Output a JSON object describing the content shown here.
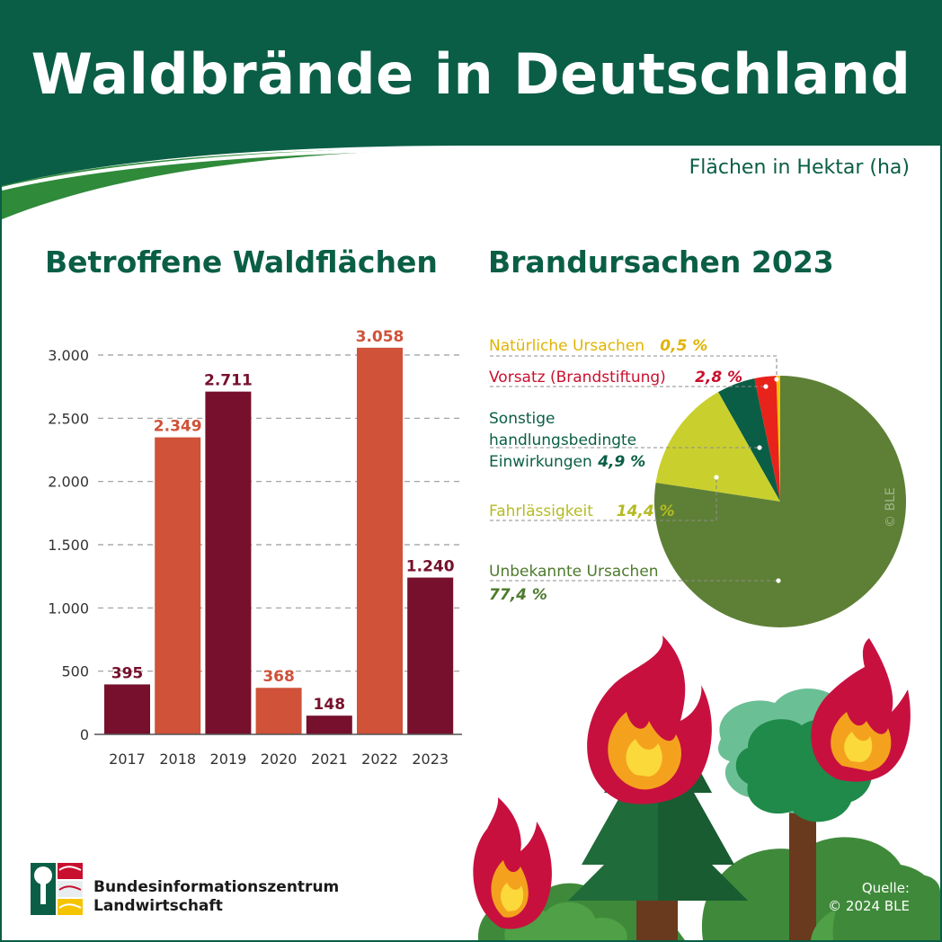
{
  "header": {
    "title": "Waldbrände in Deutschland",
    "unit_note": "Flächen in Hektar (ha)"
  },
  "colors": {
    "brand_green": "#0a5e45",
    "bar_dark": "#76102d",
    "bar_orange": "#cf5239",
    "pie_unknown": "#5e8036",
    "pie_negligence": "#c9d02e",
    "pie_other": "#0a5e45",
    "pie_arson": "#e8231b",
    "pie_natural": "#f5c400"
  },
  "chart_data": [
    {
      "type": "bar",
      "title": "Betroffene Waldflächen",
      "categories": [
        "2017",
        "2018",
        "2019",
        "2020",
        "2021",
        "2022",
        "2023"
      ],
      "values": [
        395,
        2349,
        2711,
        368,
        148,
        3058,
        1240
      ],
      "value_labels": [
        "395",
        "2.349",
        "2.711",
        "368",
        "148",
        "3.058",
        "1.240"
      ],
      "bar_colors": [
        "#76102d",
        "#cf5239",
        "#76102d",
        "#cf5239",
        "#76102d",
        "#cf5239",
        "#76102d"
      ],
      "label_colors": [
        "#76102d",
        "#cf5239",
        "#76102d",
        "#cf5239",
        "#76102d",
        "#cf5239",
        "#76102d"
      ],
      "yticks": [
        0,
        500,
        1000,
        1500,
        2000,
        2500,
        3000
      ],
      "ytick_labels": [
        "0",
        "500",
        "1.000",
        "1.500",
        "2.000",
        "2.500",
        "3.000"
      ],
      "ylim": [
        0,
        3000
      ],
      "grid": true
    },
    {
      "type": "pie",
      "title": "Brandursachen 2023",
      "slices": [
        {
          "name": "Natürliche Ursachen",
          "pct_label": "0,5 %",
          "value": 0.5,
          "color": "#f5c400",
          "label_color": "#e0b400"
        },
        {
          "name": "Vorsatz (Brandstiftung)",
          "pct_label": "2,8 %",
          "value": 2.8,
          "color": "#e8231b",
          "label_color": "#c8102e"
        },
        {
          "name": "Sonstige handlungsbedingte Einwirkungen",
          "name_lines": [
            "Sonstige",
            "handlungsbedingte",
            "Einwirkungen"
          ],
          "pct_label": "4,9 %",
          "value": 4.9,
          "color": "#0a5e45",
          "label_color": "#0a5e45"
        },
        {
          "name": "Fahrlässigkeit",
          "pct_label": "14,4 %",
          "value": 14.4,
          "color": "#c9d02e",
          "label_color": "#b5bb22"
        },
        {
          "name": "Unbekannte Ursachen",
          "pct_label": "77,4 %",
          "value": 77.4,
          "color": "#5e8036",
          "label_color": "#4d7a2c"
        }
      ],
      "watermark": "© BLE"
    }
  ],
  "footer": {
    "org_line1": "Bundesinformationszentrum",
    "org_line2": "Landwirtschaft",
    "source_label": "Quelle:",
    "source_value": "© 2024 BLE"
  }
}
